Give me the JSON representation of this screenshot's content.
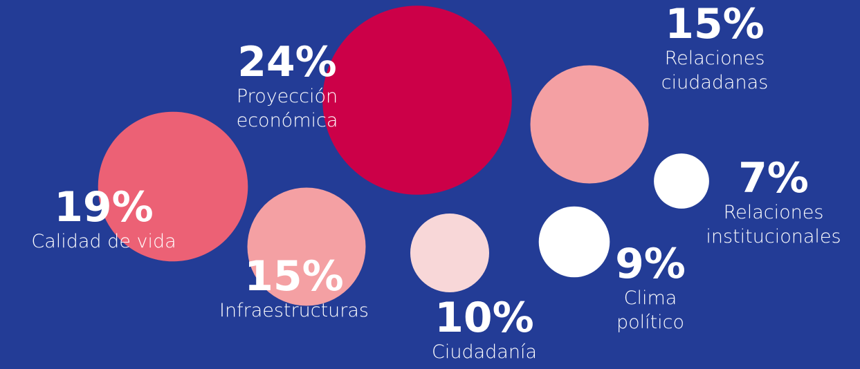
{
  "chart_data": {
    "type": "bubble",
    "categories": [
      "Proyección económica",
      "Calidad de vida",
      "Infraestructuras",
      "Ciudadanía",
      "Clima político",
      "Relaciones institucionales",
      "Relaciones ciudadanas"
    ],
    "values": [
      24,
      19,
      15,
      10,
      9,
      7,
      15
    ],
    "value_labels": [
      "24%",
      "19%",
      "15%",
      "10%",
      "9%",
      "7%",
      "15%"
    ],
    "colors": [
      "#cc0048",
      "#ec6175",
      "#f4a0a3",
      "#f8d7d8",
      "#ffffff",
      "#ffffff",
      "#f4a0a3"
    ]
  }
}
